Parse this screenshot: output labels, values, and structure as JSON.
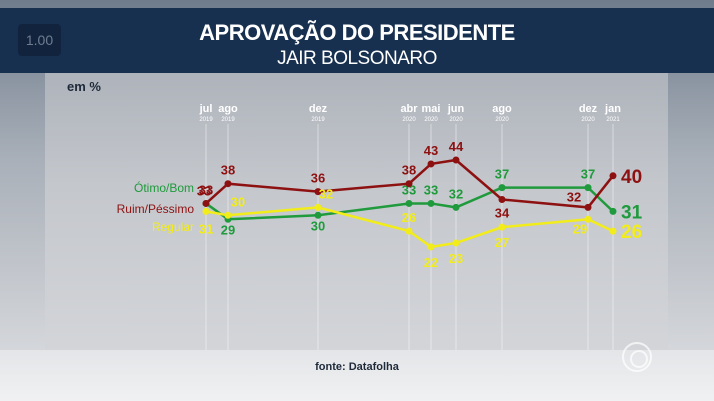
{
  "badge": "1.00",
  "header": {
    "title": "APROVAÇÃO DO PRESIDENTE",
    "subtitle": "JAIR BOLSONARO"
  },
  "unit": "em %",
  "source": "fonte: Datafolha",
  "chart_data": {
    "type": "line",
    "title": "APROVAÇÃO DO PRESIDENTE",
    "subtitle": "JAIR BOLSONARO",
    "ylabel": "em %",
    "x": [
      {
        "month": "jul",
        "year": "2019"
      },
      {
        "month": "ago",
        "year": "2019"
      },
      {
        "month": "dez",
        "year": "2019"
      },
      {
        "month": "abr",
        "year": "2020"
      },
      {
        "month": "mai",
        "year": "2020"
      },
      {
        "month": "jun",
        "year": "2020"
      },
      {
        "month": "ago",
        "year": "2020"
      },
      {
        "month": "dez",
        "year": "2020"
      },
      {
        "month": "jan",
        "year": "2021"
      }
    ],
    "series": [
      {
        "name": "Ótimo/Bom",
        "color": "#1f9a3c",
        "values": [
          33,
          29,
          30,
          33,
          33,
          32,
          37,
          37,
          31
        ]
      },
      {
        "name": "Ruim/Péssimo",
        "color": "#8e1111",
        "values": [
          33,
          38,
          36,
          38,
          43,
          44,
          34,
          32,
          40
        ]
      },
      {
        "name": "Regular",
        "color": "#f2ec1a",
        "values": [
          31,
          30,
          32,
          26,
          22,
          23,
          27,
          29,
          26
        ]
      }
    ],
    "grid": false,
    "legend": "left"
  }
}
